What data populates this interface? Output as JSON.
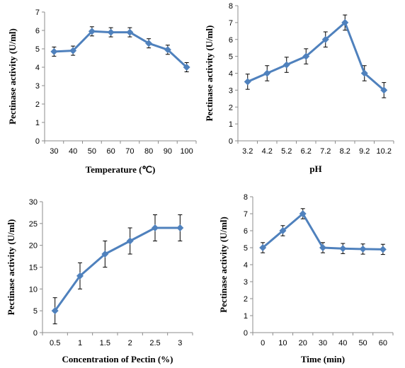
{
  "chart_data": [
    {
      "type": "line",
      "xlabel": "Temperature (℃)",
      "ylabel": "Pectinase activity (U/ml)",
      "categories": [
        "30",
        "40",
        "50",
        "60",
        "70",
        "80",
        "90",
        "100"
      ],
      "values": [
        4.85,
        4.9,
        5.95,
        5.9,
        5.9,
        5.3,
        4.95,
        4.0
      ],
      "errors": [
        0.25,
        0.25,
        0.25,
        0.25,
        0.25,
        0.25,
        0.25,
        0.25
      ],
      "ylim": [
        0,
        7
      ],
      "yticks": [
        0,
        1,
        2,
        3,
        4,
        5,
        6,
        7
      ],
      "grid": false,
      "color": "#4f81bd"
    },
    {
      "type": "line",
      "xlabel": "pH",
      "ylabel": "Pectinase activity (U/ml)",
      "categories": [
        "3.2",
        "4.2",
        "5.2",
        "6.2",
        "7.2",
        "8.2",
        "9.2",
        "10.2"
      ],
      "values": [
        3.5,
        4.0,
        4.5,
        5.0,
        6.0,
        7.0,
        4.0,
        3.0
      ],
      "errors": [
        0.45,
        0.45,
        0.45,
        0.45,
        0.45,
        0.45,
        0.45,
        0.45
      ],
      "ylim": [
        0,
        8
      ],
      "yticks": [
        0,
        1,
        2,
        3,
        4,
        5,
        6,
        7,
        8
      ],
      "grid": false,
      "color": "#4f81bd"
    },
    {
      "type": "line",
      "xlabel": "Concentration of Pectin (%)",
      "ylabel": "Pectinase activity (U/ml)",
      "categories": [
        "0.5",
        "1",
        "1.5",
        "2",
        "2.5",
        "3"
      ],
      "values": [
        5,
        13,
        18,
        21,
        24,
        24
      ],
      "errors": [
        3,
        3,
        3,
        3,
        3,
        3
      ],
      "ylim": [
        0,
        30
      ],
      "yticks": [
        0,
        5,
        10,
        15,
        20,
        25,
        30
      ],
      "grid": false,
      "color": "#4f81bd"
    },
    {
      "type": "line",
      "xlabel": "Time (min)",
      "ylabel": "Pectinase activity (U/ml)",
      "categories": [
        "0",
        "10",
        "20",
        "30",
        "40",
        "50",
        "60"
      ],
      "values": [
        5.0,
        6.0,
        7.0,
        5.0,
        4.95,
        4.92,
        4.9
      ],
      "errors": [
        0.3,
        0.3,
        0.3,
        0.3,
        0.3,
        0.3,
        0.3
      ],
      "ylim": [
        0,
        8
      ],
      "yticks": [
        0,
        1,
        2,
        3,
        4,
        5,
        6,
        7,
        8
      ],
      "grid": false,
      "color": "#4f81bd"
    }
  ]
}
